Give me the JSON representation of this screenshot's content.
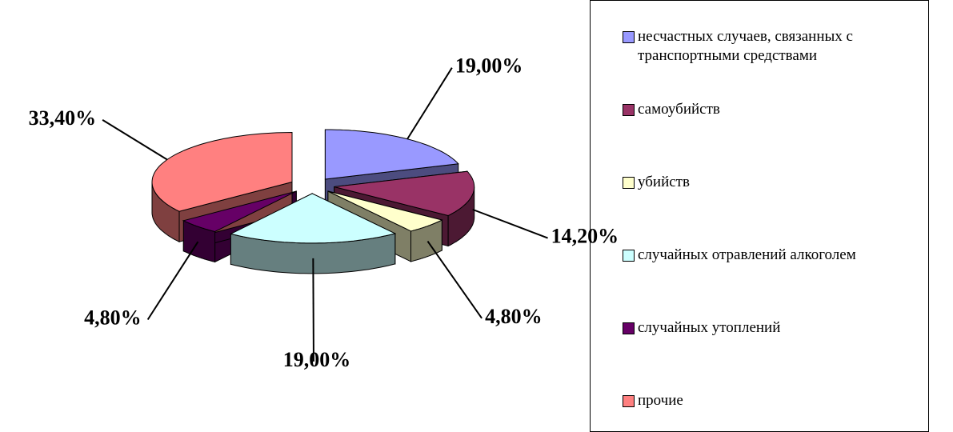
{
  "chart_data": {
    "type": "pie3d",
    "categories": [
      "несчастных случаев, связанных с транспортными средствами",
      "самоубийств",
      "убийств",
      "случайных отравлений алкоголем",
      "случайных утоплений",
      "прочие"
    ],
    "values": [
      19.0,
      14.2,
      4.8,
      19.0,
      4.8,
      33.4
    ],
    "value_labels": [
      "19,00%",
      "14,20%",
      "4,80%",
      "19,00%",
      "4,80%",
      "33,40%"
    ],
    "colors": [
      "#9999ff",
      "#993366",
      "#ffffcc",
      "#ccffff",
      "#660066",
      "#ff8080"
    ],
    "legend": "right"
  }
}
